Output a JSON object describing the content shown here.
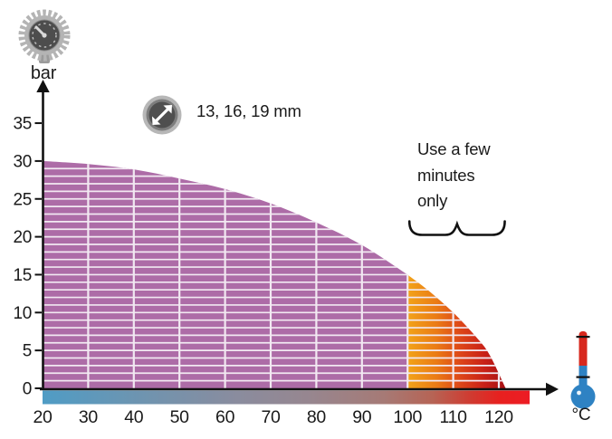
{
  "chart_data": {
    "type": "area",
    "title": "",
    "xlabel_unit": "°C",
    "ylabel_unit": "bar",
    "x_axis": {
      "ticks": [
        20,
        30,
        40,
        50,
        60,
        70,
        80,
        90,
        100,
        110,
        120
      ],
      "min": 20,
      "arrow_end": 128
    },
    "y_axis": {
      "ticks": [
        0,
        5,
        10,
        15,
        20,
        25,
        30,
        35
      ],
      "min": 0,
      "arrow_end": 36.5
    },
    "grid": {
      "horizontal_step_bar": 1,
      "vertical_step_c": 10,
      "line_color": "#f2e9f2"
    },
    "series": [
      {
        "name": "continuous-use-pressure-limit",
        "fill": "#ad6ca7",
        "points": [
          [
            20,
            30
          ],
          [
            30,
            29.6
          ],
          [
            40,
            28.9
          ],
          [
            50,
            27.7
          ],
          [
            60,
            26.3
          ],
          [
            70,
            24.4
          ],
          [
            80,
            21.9
          ],
          [
            90,
            18.9
          ],
          [
            100,
            15.0
          ]
        ]
      },
      {
        "name": "short-term-use-pressure-limit",
        "fill_gradient": [
          {
            "offset": 0,
            "color": "#f2a319"
          },
          {
            "offset": 0.3,
            "color": "#ea7a16"
          },
          {
            "offset": 0.55,
            "color": "#dc4419"
          },
          {
            "offset": 0.78,
            "color": "#c92118"
          },
          {
            "offset": 1,
            "color": "#a50f13"
          }
        ],
        "points": [
          [
            100,
            15.0
          ],
          [
            105,
            12.7
          ],
          [
            110,
            10.0
          ],
          [
            115,
            6.8
          ],
          [
            118,
            4.4
          ],
          [
            121.5,
            0
          ]
        ]
      }
    ],
    "axis_bar_gradient": [
      {
        "offset": 0,
        "color": "#4f9cc5"
      },
      {
        "offset": 0.18,
        "color": "#6b95b2"
      },
      {
        "offset": 0.4,
        "color": "#8a8c9e"
      },
      {
        "offset": 0.55,
        "color": "#97868f"
      },
      {
        "offset": 0.7,
        "color": "#a67a76"
      },
      {
        "offset": 0.8,
        "color": "#b66455"
      },
      {
        "offset": 0.88,
        "color": "#d03a30"
      },
      {
        "offset": 0.94,
        "color": "#e8201f"
      },
      {
        "offset": 1,
        "color": "#ed1c24"
      }
    ],
    "annotations": {
      "hose_diameters": "13, 16, 19 mm",
      "short_use_note": "Use a few minutes only",
      "brace_range_c": [
        100,
        121.5
      ]
    },
    "axis_color": "#111111"
  },
  "icons": {
    "pressure": "pressure-gauge-icon",
    "diameter": "hose-diameter-icon",
    "temperature": "thermometer-icon"
  }
}
